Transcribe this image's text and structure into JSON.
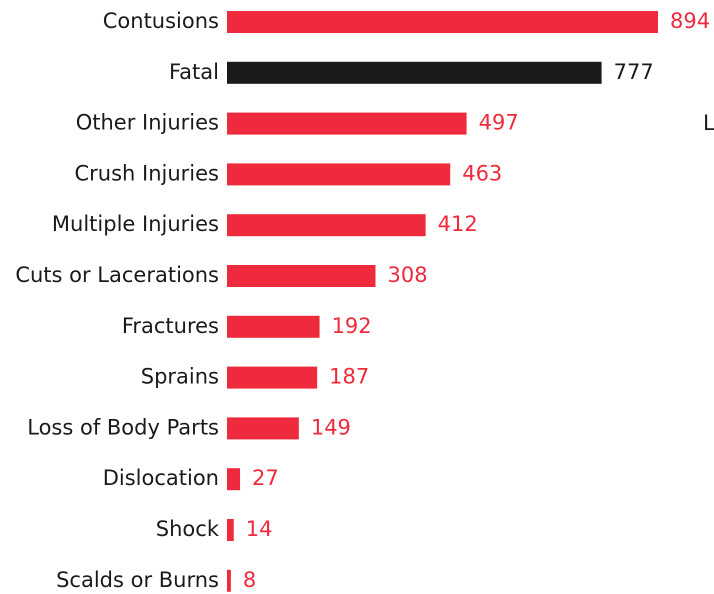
{
  "chart_data": {
    "type": "barh",
    "categories": [
      "Contusions",
      "Fatal",
      "Other Injuries",
      "Crush Injuries",
      "Multiple Injuries",
      "Cuts or Lacerations",
      "Fractures",
      "Sprains",
      "Loss of Body Parts",
      "Dislocation",
      "Shock",
      "Scalds or Burns"
    ],
    "values": [
      894,
      777,
      497,
      463,
      412,
      308,
      192,
      187,
      149,
      27,
      14,
      8
    ],
    "colors": [
      "#ee2a3c",
      "#1a1a1a",
      "#ee2a3c",
      "#ee2a3c",
      "#ee2a3c",
      "#ee2a3c",
      "#ee2a3c",
      "#ee2a3c",
      "#ee2a3c",
      "#ee2a3c",
      "#ee2a3c",
      "#ee2a3c"
    ],
    "annotations": [
      "L"
    ]
  }
}
